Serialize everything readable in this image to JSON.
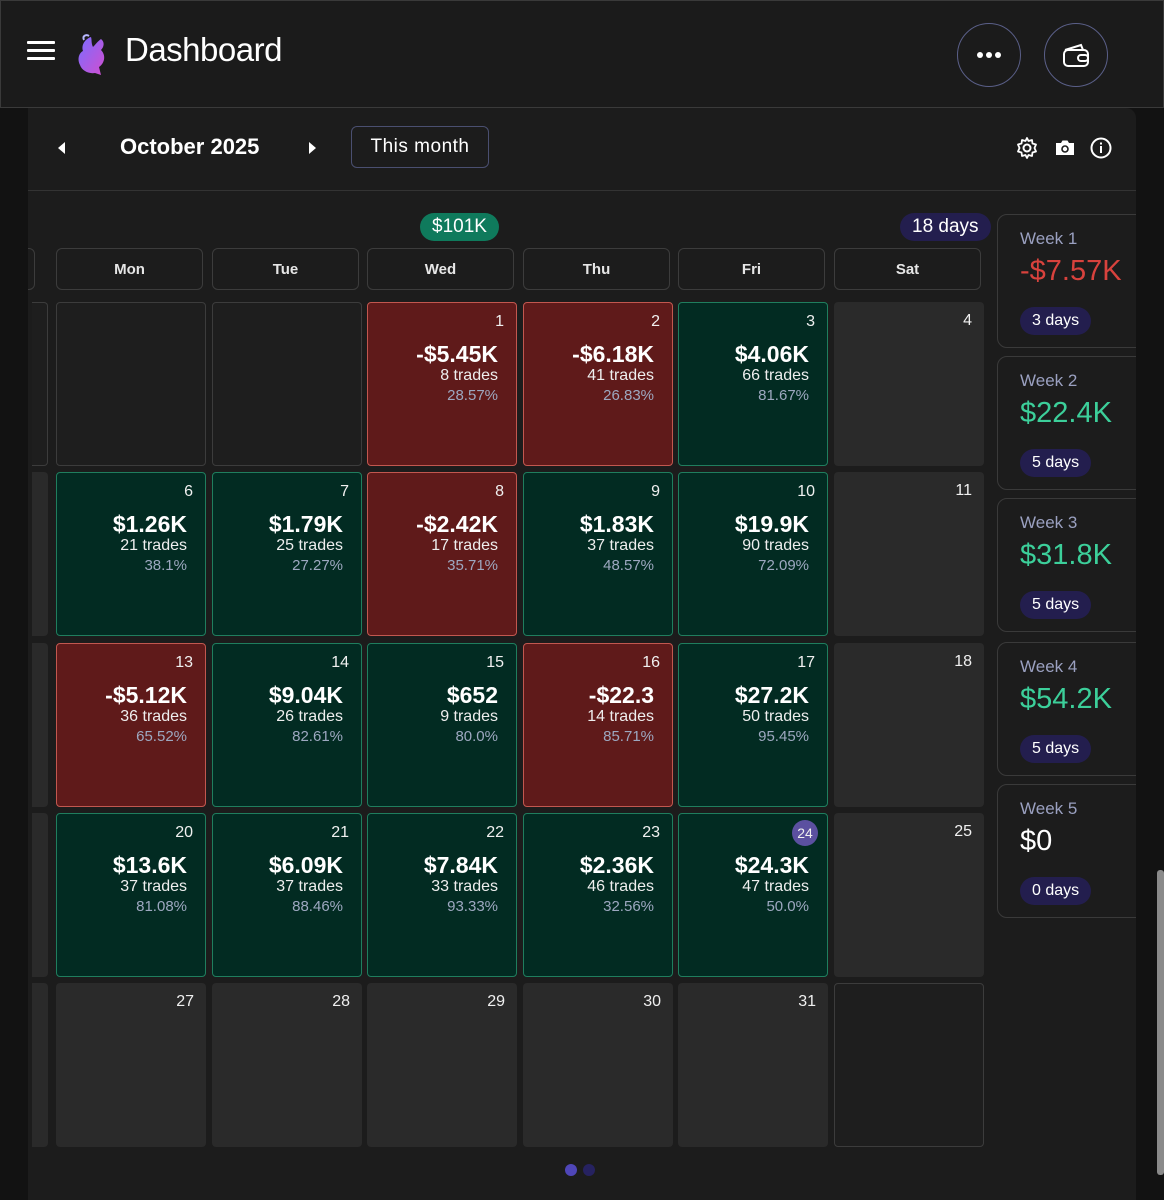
{
  "app": {
    "title": "Dashboard"
  },
  "toolbar": {
    "month": "October 2025",
    "this_month_label": "This month"
  },
  "summary": {
    "total": "$101K",
    "days": "18 days"
  },
  "weekdays": [
    "Mon",
    "Tue",
    "Wed",
    "Thu",
    "Fri",
    "Sat"
  ],
  "calendar": {
    "row1": [
      {
        "day": "",
        "pnl": "",
        "trades": "",
        "pct": ""
      },
      {
        "day": "",
        "pnl": "",
        "trades": "",
        "pct": ""
      },
      {
        "day": "1",
        "pnl": "-$5.45K",
        "trades": "8 trades",
        "pct": "28.57%"
      },
      {
        "day": "2",
        "pnl": "-$6.18K",
        "trades": "41 trades",
        "pct": "26.83%"
      },
      {
        "day": "3",
        "pnl": "$4.06K",
        "trades": "66 trades",
        "pct": "81.67%"
      },
      {
        "day": "4",
        "pnl": "",
        "trades": "",
        "pct": ""
      }
    ],
    "row2": [
      {
        "day": "6",
        "pnl": "$1.26K",
        "trades": "21 trades",
        "pct": "38.1%"
      },
      {
        "day": "7",
        "pnl": "$1.79K",
        "trades": "25 trades",
        "pct": "27.27%"
      },
      {
        "day": "8",
        "pnl": "-$2.42K",
        "trades": "17 trades",
        "pct": "35.71%"
      },
      {
        "day": "9",
        "pnl": "$1.83K",
        "trades": "37 trades",
        "pct": "48.57%"
      },
      {
        "day": "10",
        "pnl": "$19.9K",
        "trades": "90 trades",
        "pct": "72.09%"
      },
      {
        "day": "11",
        "pnl": "",
        "trades": "",
        "pct": ""
      }
    ],
    "row3": [
      {
        "day": "13",
        "pnl": "-$5.12K",
        "trades": "36 trades",
        "pct": "65.52%"
      },
      {
        "day": "14",
        "pnl": "$9.04K",
        "trades": "26 trades",
        "pct": "82.61%"
      },
      {
        "day": "15",
        "pnl": "$652",
        "trades": "9 trades",
        "pct": "80.0%"
      },
      {
        "day": "16",
        "pnl": "-$22.3",
        "trades": "14 trades",
        "pct": "85.71%"
      },
      {
        "day": "17",
        "pnl": "$27.2K",
        "trades": "50 trades",
        "pct": "95.45%"
      },
      {
        "day": "18",
        "pnl": "",
        "trades": "",
        "pct": ""
      }
    ],
    "row4": [
      {
        "day": "20",
        "pnl": "$13.6K",
        "trades": "37 trades",
        "pct": "81.08%"
      },
      {
        "day": "21",
        "pnl": "$6.09K",
        "trades": "37 trades",
        "pct": "88.46%"
      },
      {
        "day": "22",
        "pnl": "$7.84K",
        "trades": "33 trades",
        "pct": "93.33%"
      },
      {
        "day": "23",
        "pnl": "$2.36K",
        "trades": "46 trades",
        "pct": "32.56%"
      },
      {
        "day": "24",
        "pnl": "$24.3K",
        "trades": "47 trades",
        "pct": "50.0%"
      },
      {
        "day": "25",
        "pnl": "",
        "trades": "",
        "pct": ""
      }
    ],
    "row5": [
      {
        "day": "27"
      },
      {
        "day": "28"
      },
      {
        "day": "29"
      },
      {
        "day": "30"
      },
      {
        "day": "31"
      },
      {
        "day": ""
      }
    ]
  },
  "weeks": [
    {
      "label": "Week 1",
      "value": "-$7.57K",
      "days": "3 days",
      "color": "#d8423d"
    },
    {
      "label": "Week 2",
      "value": "$22.4K",
      "days": "5 days",
      "color": "#3ccf9a"
    },
    {
      "label": "Week 3",
      "value": "$31.8K",
      "days": "5 days",
      "color": "#3ccf9a"
    },
    {
      "label": "Week 4",
      "value": "$54.2K",
      "days": "5 days",
      "color": "#3ccf9a"
    },
    {
      "label": "Week 5",
      "value": "$0",
      "days": "0 days",
      "color": "#ffffff"
    }
  ],
  "colors": {
    "profit": "#3ccf9a",
    "loss": "#d8423d",
    "accent": "#5b50a0"
  }
}
